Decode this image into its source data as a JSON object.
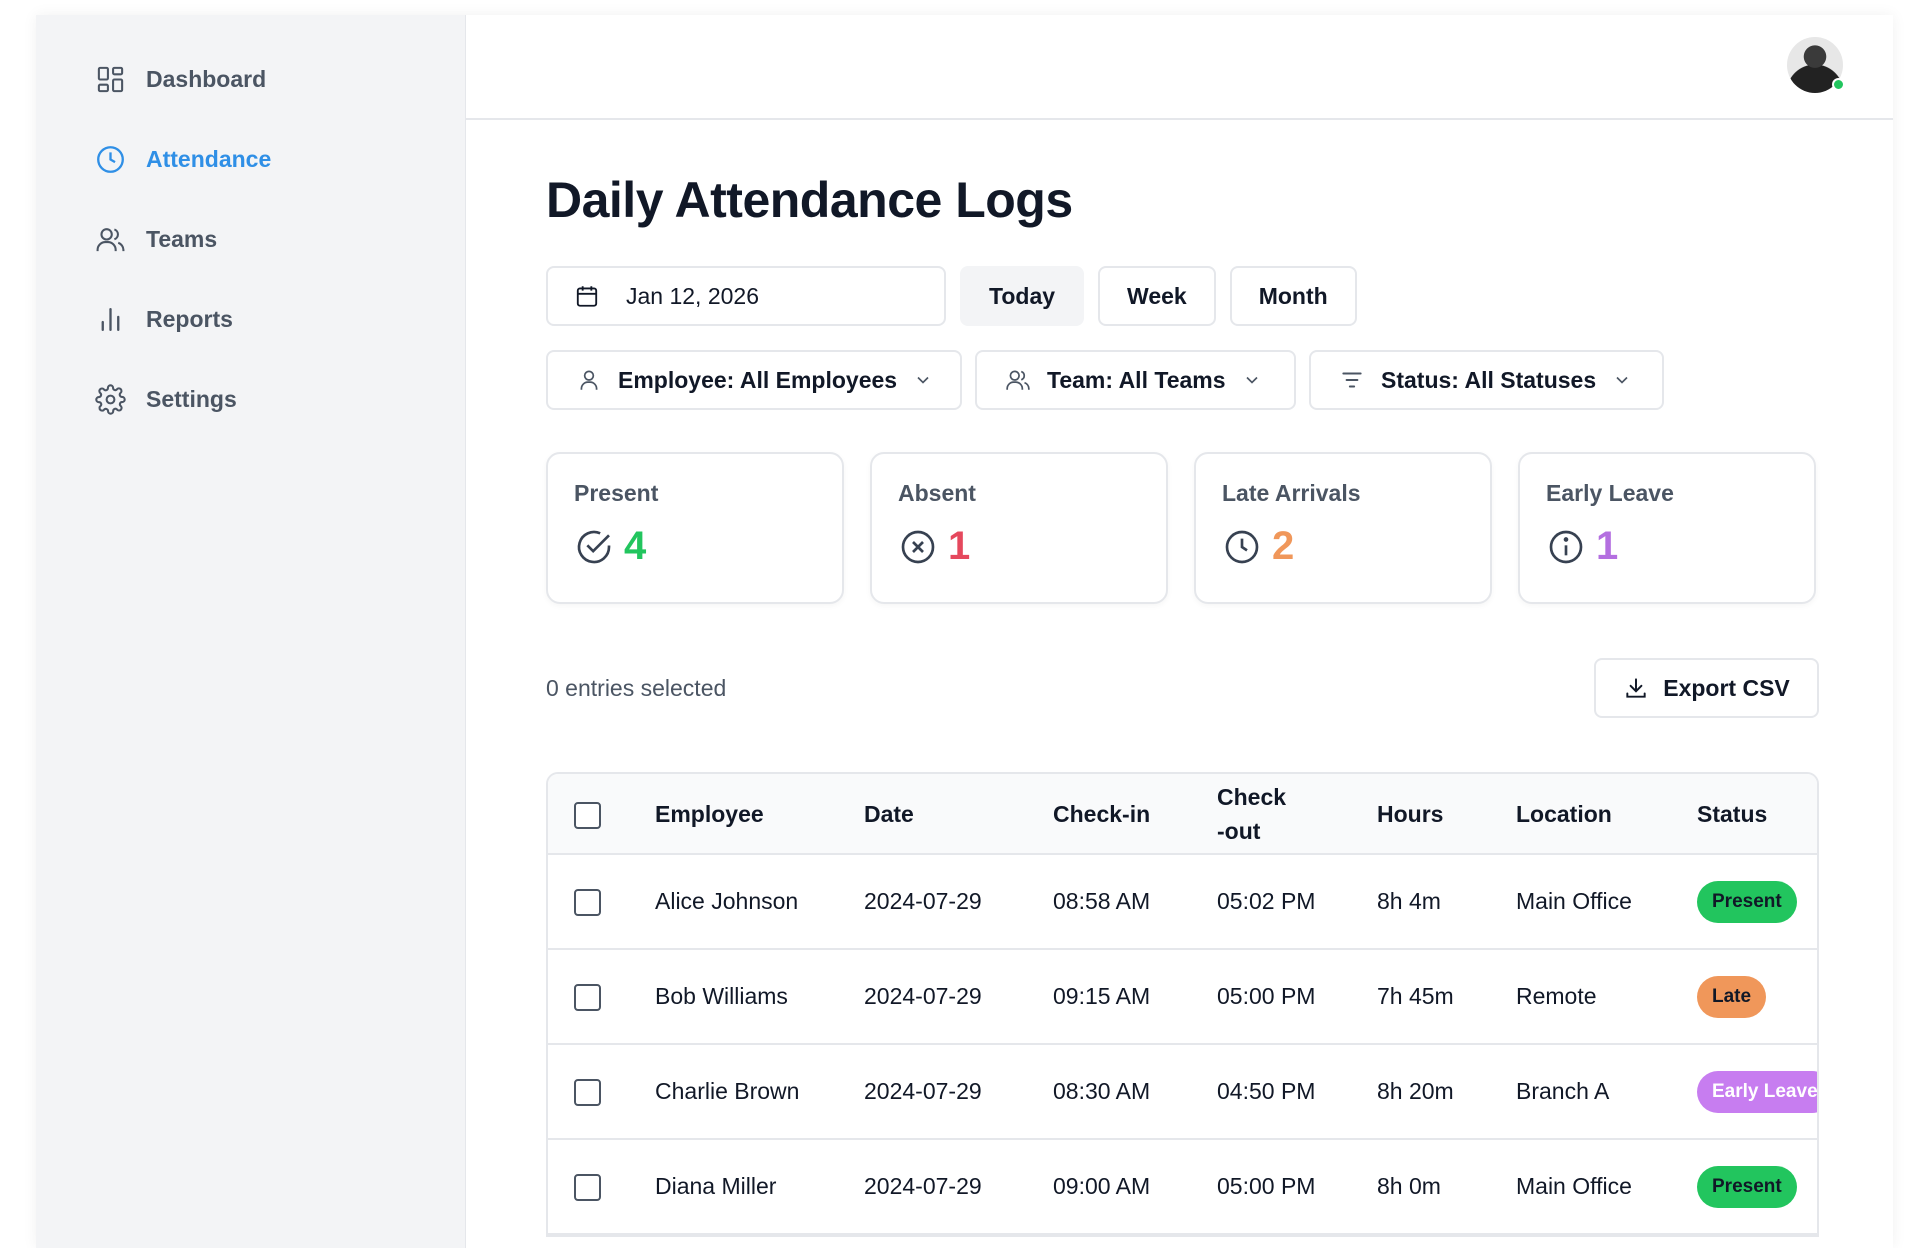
{
  "sidebar": {
    "items": [
      {
        "label": "Dashboard",
        "icon": "dashboard-icon"
      },
      {
        "label": "Attendance",
        "icon": "clock-icon",
        "active": true
      },
      {
        "label": "Teams",
        "icon": "users-icon"
      },
      {
        "label": "Reports",
        "icon": "bar-chart-icon"
      },
      {
        "label": "Settings",
        "icon": "gear-icon"
      }
    ]
  },
  "header": {
    "avatar_status": "online"
  },
  "page": {
    "title": "Daily Attendance Logs"
  },
  "date_controls": {
    "date_value": "Jan 12, 2026",
    "ranges": [
      "Today",
      "Week",
      "Month"
    ],
    "selected_range": "Today"
  },
  "filters": {
    "employee": "Employee: All Employees",
    "team": "Team: All Teams",
    "status": "Status: All Statuses"
  },
  "stats": {
    "present": {
      "label": "Present",
      "value": "4",
      "color": "#22c55e"
    },
    "absent": {
      "label": "Absent",
      "value": "1",
      "color": "#e5485d"
    },
    "late": {
      "label": "Late Arrivals",
      "value": "2",
      "color": "#f0975a"
    },
    "early": {
      "label": "Early Leave",
      "value": "1",
      "color": "#b46fe0"
    }
  },
  "selection": {
    "count_text": "0 entries selected",
    "export_label": "Export CSV"
  },
  "table": {
    "headers": {
      "employee": "Employee",
      "date": "Date",
      "check_in": "Check-in",
      "check_out_line1": "Check",
      "check_out_line2": "-out",
      "hours": "Hours",
      "location": "Location",
      "status": "Status"
    },
    "rows": [
      {
        "employee": "Alice Johnson",
        "date": "2024-07-29",
        "check_in": "08:58 AM",
        "check_out": "05:02 PM",
        "hours": "8h 4m",
        "location": "Main Office",
        "status": "Present"
      },
      {
        "employee": "Bob Williams",
        "date": "2024-07-29",
        "check_in": "09:15 AM",
        "check_out": "05:00 PM",
        "hours": "7h 45m",
        "location": "Remote",
        "status": "Late"
      },
      {
        "employee": "Charlie Brown",
        "date": "2024-07-29",
        "check_in": "08:30 AM",
        "check_out": "04:50 PM",
        "hours": "8h 20m",
        "location": "Branch A",
        "status": "Early Leave"
      },
      {
        "employee": "Diana Miller",
        "date": "2024-07-29",
        "check_in": "09:00 AM",
        "check_out": "05:00 PM",
        "hours": "8h 0m",
        "location": "Main Office",
        "status": "Present"
      }
    ]
  }
}
